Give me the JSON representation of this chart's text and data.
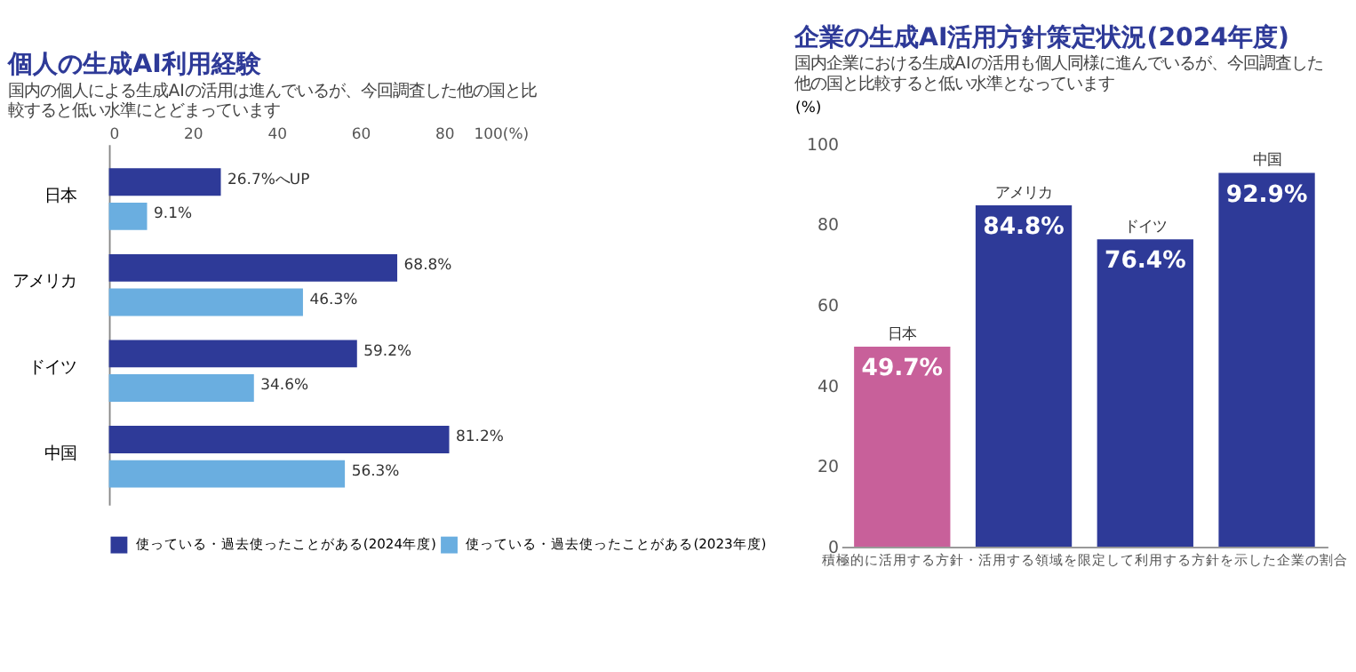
{
  "chart_data": [
    {
      "type": "bar",
      "orientation": "horizontal",
      "title": "個人の生成AI利用経験",
      "subtitle": "国内の個人による生成AIの活用は進んでいるが、今回調査した他の国と比較すると低い水準にとどまっています",
      "categories": [
        "日本",
        "アメリカ",
        "ドイツ",
        "中国"
      ],
      "series": [
        {
          "name": "使っている・過去使ったことがある(2024年度)",
          "color": "#2e3a98",
          "values": [
            26.7,
            68.8,
            59.2,
            81.2
          ],
          "value_labels": [
            "26.7%へUP",
            "68.8%",
            "59.2%",
            "81.2%"
          ]
        },
        {
          "name": "使っている・過去使ったことがある(2023年度)",
          "color": "#6aaee0",
          "values": [
            9.1,
            46.3,
            34.6,
            56.3
          ],
          "value_labels": [
            "9.1%",
            "46.3%",
            "34.6%",
            "56.3%"
          ]
        }
      ],
      "xlim": [
        0,
        100
      ],
      "xticks": [
        0,
        20,
        40,
        60,
        80,
        {
          "value": 100,
          "label": "100(%)"
        }
      ],
      "grid": false,
      "legend": "bottom"
    },
    {
      "type": "bar",
      "title": "企業の生成AI活用方針策定状況(2024年度)",
      "subtitle": "国内企業における生成AIの活用も個人同様に進んでいるが、今回調査した他の国と比較すると低い水準となっています",
      "categories": [
        "日本",
        "アメリカ",
        "ドイツ",
        "中国"
      ],
      "values": [
        49.7,
        84.8,
        76.4,
        92.9
      ],
      "value_labels": [
        "49.7%",
        "84.8%",
        "76.4%",
        "92.9%"
      ],
      "colors": [
        "#c8609a",
        "#2e3a98",
        "#2e3a98",
        "#2e3a98"
      ],
      "ylabel": "(%)",
      "xlabel": "積極的に活用する方針・活用する領域を限定して利用する方針を示した企業の割合",
      "ylim": [
        0,
        100
      ],
      "yticks": [
        0,
        20,
        40,
        60,
        80,
        100
      ],
      "grid": false
    }
  ]
}
